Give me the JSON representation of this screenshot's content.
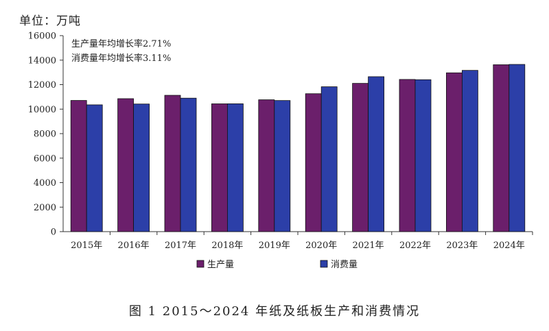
{
  "unit_label": "单位：万吨",
  "caption": "图 1 2015～2024 年纸及纸板生产和消费情况",
  "notes": [
    "生产量年均增长率2.71%",
    "消费量年均增长率3.11%"
  ],
  "colors": {
    "production": "#6b1f6b",
    "consumption": "#2c3fa8",
    "axis": "#333333"
  },
  "chart_data": {
    "type": "bar",
    "title": "",
    "ylabel": "单位：万吨",
    "xlabel": "",
    "ylim": [
      0,
      16000
    ],
    "yticks": [
      0,
      2000,
      4000,
      6000,
      8000,
      10000,
      12000,
      14000,
      16000
    ],
    "categories": [
      "2015年",
      "2016年",
      "2017年",
      "2018年",
      "2019年",
      "2020年",
      "2021年",
      "2022年",
      "2023年",
      "2024年"
    ],
    "series": [
      {
        "name": "生产量",
        "values": [
          10710,
          10855,
          11130,
          10435,
          10765,
          11260,
          12105,
          12425,
          12965,
          13625
        ]
      },
      {
        "name": "消费量",
        "values": [
          10352,
          10419,
          10897,
          10439,
          10704,
          11827,
          12648,
          12403,
          13165,
          13650
        ]
      }
    ],
    "legend": "bottom",
    "grid": false
  }
}
